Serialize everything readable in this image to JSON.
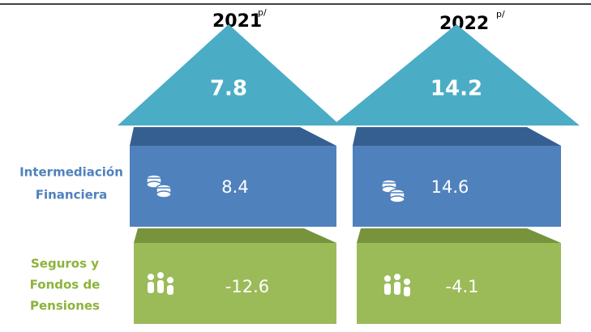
{
  "columns": [
    {
      "year": "2021",
      "note": "p/",
      "total": 7.8,
      "rows": [
        8.4,
        -12.6
      ]
    },
    {
      "year": "2022",
      "note": "p/",
      "total": 14.2,
      "rows": [
        14.6,
        -4.1
      ]
    }
  ],
  "row_labels": [
    [
      "Intermediación",
      "Financiera"
    ],
    [
      "Seguros y",
      "Fondos de",
      "Pensiones"
    ]
  ]
}
